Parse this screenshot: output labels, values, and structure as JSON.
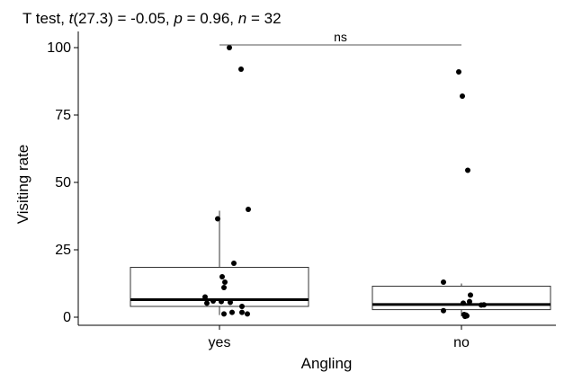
{
  "chart_data": {
    "type": "boxplot",
    "subtitle": {
      "prefix": "T test, ",
      "t_symbol": "t",
      "df_part": "(27.3) = -0.05, ",
      "p_symbol": "p",
      "p_part": " = 0.96, ",
      "n_symbol": "n",
      "n_part": " = 32"
    },
    "xlabel": "Angling",
    "ylabel": "Visiting rate",
    "ylim": [
      -3,
      106
    ],
    "yticks": [
      0,
      25,
      50,
      75,
      100
    ],
    "ytick_labels": [
      "0",
      "25",
      "50",
      "75",
      "100"
    ],
    "categories": [
      "yes",
      "no"
    ],
    "boxes": [
      {
        "category": "yes",
        "q1": 4,
        "median": 6.5,
        "q3": 18.5,
        "whisker_low": 0.8,
        "whisker_high": 39.5
      },
      {
        "category": "no",
        "q1": 2.8,
        "median": 4.7,
        "q3": 11.5,
        "whisker_low": 0.3,
        "whisker_high": 12.5
      }
    ],
    "points": [
      {
        "category": "yes",
        "jitter": -0.16,
        "value": 7.5
      },
      {
        "category": "yes",
        "jitter": -0.14,
        "value": 5.2
      },
      {
        "category": "yes",
        "jitter": -0.07,
        "value": 6
      },
      {
        "category": "yes",
        "jitter": 0.02,
        "value": 5.8
      },
      {
        "category": "yes",
        "jitter": -0.02,
        "value": 36.5
      },
      {
        "category": "yes",
        "jitter": 0.03,
        "value": 15
      },
      {
        "category": "yes",
        "jitter": 0.06,
        "value": 13
      },
      {
        "category": "yes",
        "jitter": 0.05,
        "value": 11
      },
      {
        "category": "yes",
        "jitter": 0.05,
        "value": 1.2
      },
      {
        "category": "yes",
        "jitter": 0.11,
        "value": 100
      },
      {
        "category": "yes",
        "jitter": 0.12,
        "value": 5.5
      },
      {
        "category": "yes",
        "jitter": 0.14,
        "value": 1.8
      },
      {
        "category": "yes",
        "jitter": 0.16,
        "value": 20
      },
      {
        "category": "yes",
        "jitter": 0.24,
        "value": 92
      },
      {
        "category": "yes",
        "jitter": 0.25,
        "value": 4
      },
      {
        "category": "yes",
        "jitter": 0.25,
        "value": 1.8
      },
      {
        "category": "yes",
        "jitter": 0.32,
        "value": 40
      },
      {
        "category": "yes",
        "jitter": 0.31,
        "value": 1.2
      },
      {
        "category": "no",
        "jitter": -0.2,
        "value": 2.4
      },
      {
        "category": "no",
        "jitter": -0.2,
        "value": 13
      },
      {
        "category": "no",
        "jitter": -0.03,
        "value": 91
      },
      {
        "category": "no",
        "jitter": 0.01,
        "value": 82
      },
      {
        "category": "no",
        "jitter": 0.02,
        "value": 5.2
      },
      {
        "category": "no",
        "jitter": 0.03,
        "value": 1
      },
      {
        "category": "no",
        "jitter": 0.04,
        "value": 0.3
      },
      {
        "category": "no",
        "jitter": 0.05,
        "value": 0.8
      },
      {
        "category": "no",
        "jitter": 0.06,
        "value": 0.5
      },
      {
        "category": "no",
        "jitter": 0.07,
        "value": 54.5
      },
      {
        "category": "no",
        "jitter": 0.1,
        "value": 8.2
      },
      {
        "category": "no",
        "jitter": 0.09,
        "value": 5.8
      },
      {
        "category": "no",
        "jitter": 0.22,
        "value": 4.5
      },
      {
        "category": "no",
        "jitter": 0.25,
        "value": 4.6
      }
    ],
    "significance": {
      "label": "ns",
      "y": 101,
      "from": "yes",
      "to": "no"
    },
    "grid": false
  }
}
